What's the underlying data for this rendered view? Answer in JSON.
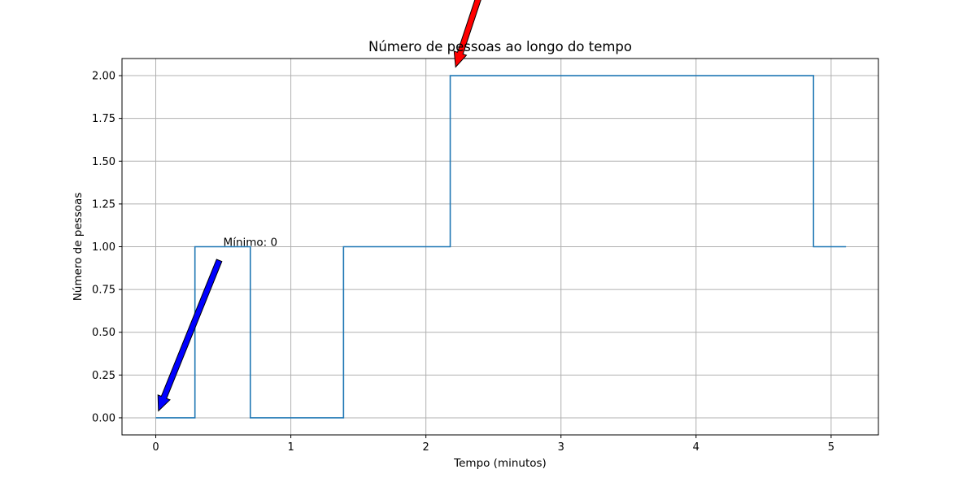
{
  "chart_data": {
    "type": "line",
    "title": "Número de pessoas ao longo do tempo",
    "xlabel": "Tempo (minutos)",
    "ylabel": "Número de pessoas",
    "xlim": [
      -0.25,
      5.35
    ],
    "ylim": [
      -0.1,
      2.1
    ],
    "xticks": [
      0,
      1,
      2,
      3,
      4,
      5
    ],
    "xtick_labels": [
      "0",
      "1",
      "2",
      "3",
      "4",
      "5"
    ],
    "yticks": [
      0,
      0.25,
      0.5,
      0.75,
      1.0,
      1.25,
      1.5,
      1.75,
      2.0
    ],
    "ytick_labels": [
      "0.00",
      "0.25",
      "0.50",
      "0.75",
      "1.00",
      "1.25",
      "1.50",
      "1.75",
      "2.00"
    ],
    "grid": true,
    "step": "post",
    "series": [
      {
        "color": "#1f77b4",
        "x": [
          0,
          0.29,
          0.7,
          1.39,
          2.18,
          4.87,
          5.11
        ],
        "y": [
          0,
          1,
          0,
          1,
          2,
          1,
          1
        ]
      }
    ],
    "annotations": [
      {
        "text": "Mínimo: 0",
        "text_xy": [
          0.5,
          1.0
        ],
        "arrow_tip_xy": [
          0.02,
          0.04
        ],
        "arrow_tail_xy": [
          0.47,
          0.92
        ],
        "arrow_color": "#0000ff"
      },
      {
        "text": "",
        "arrow_tip_xy": [
          2.22,
          2.05
        ],
        "arrow_tail_xy": [
          2.43,
          2.55
        ],
        "arrow_color": "#ff0000"
      }
    ]
  }
}
